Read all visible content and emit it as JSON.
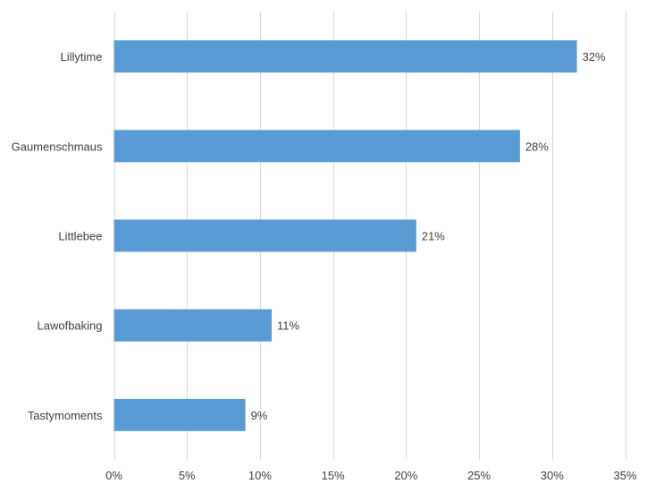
{
  "chart_data": {
    "type": "bar",
    "orientation": "horizontal",
    "title": "",
    "xlabel": "",
    "ylabel": "",
    "categories": [
      "Lillytime",
      "Gaumenschmaus",
      "Littlebee",
      "Lawofbaking",
      "Tastymoments"
    ],
    "values": [
      31.7,
      27.8,
      20.7,
      10.8,
      9.0
    ],
    "data_labels": [
      "32%",
      "28%",
      "21%",
      "11%",
      "9%"
    ],
    "xlim": [
      0,
      35
    ],
    "x_ticks": [
      0,
      5,
      10,
      15,
      20,
      25,
      30,
      35
    ],
    "x_tick_labels": [
      "0%",
      "5%",
      "10%",
      "15%",
      "20%",
      "25%",
      "30%",
      "35%"
    ],
    "grid": "vertical",
    "legend": "none",
    "colors": {
      "bar": "#5b9bd5",
      "grid": "#d9d9d9",
      "text": "#404040"
    }
  }
}
